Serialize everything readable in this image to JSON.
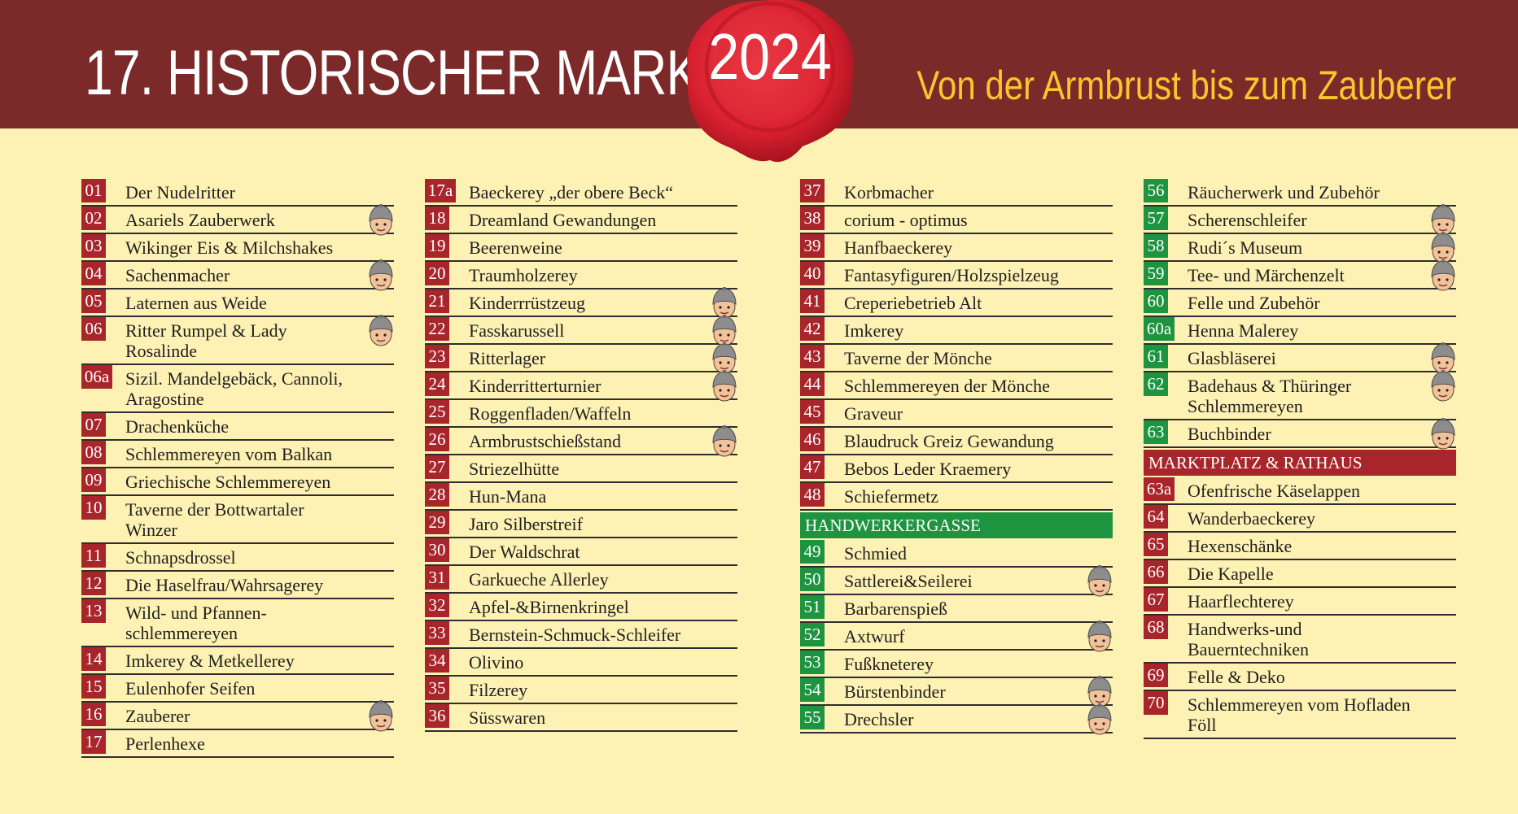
{
  "header": {
    "title": "17. HISTORISCHER MARKT",
    "year": "2024",
    "subtitle": "Von der Armbrust bis zum Zauberer"
  },
  "colors": {
    "banner": "#7c2a29",
    "background": "#fdf1b4",
    "number_red": "#a8262b",
    "number_green": "#1e9440",
    "subtitle": "#f7c72d"
  },
  "columns": [
    {
      "items": [
        {
          "num": "01",
          "name": "Der Nudelritter",
          "color": "red",
          "knight": false
        },
        {
          "num": "02",
          "name": "Asariels Zauberwerk",
          "color": "red",
          "knight": true
        },
        {
          "num": "03",
          "name": "Wikinger Eis & Milchshakes",
          "color": "red",
          "knight": false
        },
        {
          "num": "04",
          "name": "Sachenmacher",
          "color": "red",
          "knight": true
        },
        {
          "num": "05",
          "name": "Laternen aus Weide",
          "color": "red",
          "knight": false
        },
        {
          "num": "06",
          "name": "Ritter Rumpel & Lady Rosalinde",
          "color": "red",
          "knight": true
        },
        {
          "num": "06a",
          "name": "Sizil. Mandelgebäck, Cannoli,\nAragostine",
          "color": "red",
          "knight": false
        },
        {
          "num": "07",
          "name": "Drachenküche",
          "color": "red",
          "knight": false
        },
        {
          "num": "08",
          "name": "Schlemmereyen vom Balkan",
          "color": "red",
          "knight": false
        },
        {
          "num": "09",
          "name": "Griechische Schlemmereyen",
          "color": "red",
          "knight": false
        },
        {
          "num": "10",
          "name": "Taverne der Bottwartaler Winzer",
          "color": "red",
          "knight": false
        },
        {
          "num": "11",
          "name": "Schnapsdrossel",
          "color": "red",
          "knight": false
        },
        {
          "num": "12",
          "name": "Die Haselfrau/Wahrsagerey",
          "color": "red",
          "knight": false
        },
        {
          "num": "13",
          "name": "Wild- und Pfannen-\nschlemmereyen",
          "color": "red",
          "knight": false
        },
        {
          "num": "14",
          "name": "Imkerey & Metkellerey",
          "color": "red",
          "knight": false
        },
        {
          "num": "15",
          "name": "Eulenhofer Seifen",
          "color": "red",
          "knight": false
        },
        {
          "num": "16",
          "name": "Zauberer",
          "color": "red",
          "knight": true
        },
        {
          "num": "17",
          "name": "Perlenhexe",
          "color": "red",
          "knight": false
        }
      ]
    },
    {
      "items": [
        {
          "num": "17a",
          "name": "Baeckerey „der obere Beck“",
          "color": "red",
          "knight": false
        },
        {
          "num": "18",
          "name": "Dreamland Gewandungen",
          "color": "red",
          "knight": false
        },
        {
          "num": "19",
          "name": "Beerenweine",
          "color": "red",
          "knight": false
        },
        {
          "num": "20",
          "name": "Traumholzerey",
          "color": "red",
          "knight": false
        },
        {
          "num": "21",
          "name": "Kinderrrüstzeug",
          "color": "red",
          "knight": true
        },
        {
          "num": "22",
          "name": "Fasskarussell",
          "color": "red",
          "knight": true
        },
        {
          "num": "23",
          "name": "Ritterlager",
          "color": "red",
          "knight": true
        },
        {
          "num": "24",
          "name": "Kinderritterturnier",
          "color": "red",
          "knight": true
        },
        {
          "num": "25",
          "name": "Roggenfladen/Waffeln",
          "color": "red",
          "knight": false
        },
        {
          "num": "26",
          "name": "Armbrustschießstand",
          "color": "red",
          "knight": true
        },
        {
          "num": "27",
          "name": "Striezelhütte",
          "color": "red",
          "knight": false
        },
        {
          "num": "28",
          "name": "Hun-Mana",
          "color": "red",
          "knight": false
        },
        {
          "num": "29",
          "name": "Jaro Silberstreif",
          "color": "red",
          "knight": false
        },
        {
          "num": "30",
          "name": "Der Waldschrat",
          "color": "red",
          "knight": false
        },
        {
          "num": "31",
          "name": "Garkueche Allerley",
          "color": "red",
          "knight": false
        },
        {
          "num": "32",
          "name": "Apfel-&Birnenkringel",
          "color": "red",
          "knight": false
        },
        {
          "num": "33",
          "name": "Bernstein-Schmuck-Schleifer",
          "color": "red",
          "knight": false
        },
        {
          "num": "34",
          "name": "Olivino",
          "color": "red",
          "knight": false
        },
        {
          "num": "35",
          "name": "Filzerey",
          "color": "red",
          "knight": false
        },
        {
          "num": "36",
          "name": "Süsswaren",
          "color": "red",
          "knight": false
        }
      ]
    },
    {
      "items": [
        {
          "num": "37",
          "name": "Korbmacher",
          "color": "red",
          "knight": false
        },
        {
          "num": "38",
          "name": "corium - optimus",
          "color": "red",
          "knight": false
        },
        {
          "num": "39",
          "name": "Hanfbaeckerey",
          "color": "red",
          "knight": false
        },
        {
          "num": "40",
          "name": "Fantasyfiguren/Holzspielzeug",
          "color": "red",
          "knight": false
        },
        {
          "num": "41",
          "name": "Creperiebetrieb Alt",
          "color": "red",
          "knight": false
        },
        {
          "num": "42",
          "name": "Imkerey",
          "color": "red",
          "knight": false
        },
        {
          "num": "43",
          "name": "Taverne der Mönche",
          "color": "red",
          "knight": false
        },
        {
          "num": "44",
          "name": "Schlemmereyen der Mönche",
          "color": "red",
          "knight": false
        },
        {
          "num": "45",
          "name": "Graveur",
          "color": "red",
          "knight": false
        },
        {
          "num": "46",
          "name": "Blaudruck Greiz Gewandung",
          "color": "red",
          "knight": false
        },
        {
          "num": "47",
          "name": "Bebos Leder Kraemery",
          "color": "red",
          "knight": false
        },
        {
          "num": "48",
          "name": "Schiefermetz",
          "color": "red",
          "knight": false
        },
        {
          "section": "HANDWERKERGASSE",
          "color": "green"
        },
        {
          "num": "49",
          "name": "Schmied",
          "color": "green",
          "knight": false
        },
        {
          "num": "50",
          "name": "Sattlerei&Seilerei",
          "color": "green",
          "knight": true
        },
        {
          "num": "51",
          "name": "Barbarenspieß",
          "color": "green",
          "knight": false
        },
        {
          "num": "52",
          "name": "Axtwurf",
          "color": "green",
          "knight": true
        },
        {
          "num": "53",
          "name": "Fußkneterey",
          "color": "green",
          "knight": false
        },
        {
          "num": "54",
          "name": "Bürstenbinder",
          "color": "green",
          "knight": true
        },
        {
          "num": "55",
          "name": "Drechsler",
          "color": "green",
          "knight": true
        }
      ]
    },
    {
      "items": [
        {
          "num": "56",
          "name": "Räucherwerk und Zubehör",
          "color": "green",
          "knight": false
        },
        {
          "num": "57",
          "name": "Scherenschleifer",
          "color": "green",
          "knight": true
        },
        {
          "num": "58",
          "name": "Rudi´s Museum",
          "color": "green",
          "knight": true
        },
        {
          "num": "59",
          "name": "Tee- und Märchenzelt",
          "color": "green",
          "knight": true
        },
        {
          "num": "60",
          "name": "Felle und Zubehör",
          "color": "green",
          "knight": false
        },
        {
          "num": "60a",
          "name": "Henna Malerey",
          "color": "green",
          "knight": false
        },
        {
          "num": "61",
          "name": "Glasbläserei",
          "color": "green",
          "knight": true
        },
        {
          "num": "62",
          "name": "Badehaus & Thüringer\nSchlemmereyen",
          "color": "green",
          "knight": true
        },
        {
          "num": "63",
          "name": "Buchbinder",
          "color": "green",
          "knight": true
        },
        {
          "section": "MARKTPLATZ & RATHAUS",
          "color": "red"
        },
        {
          "num": "63a",
          "name": "Ofenfrische Käselappen",
          "color": "red",
          "knight": false
        },
        {
          "num": "64",
          "name": "Wanderbaeckerey",
          "color": "red",
          "knight": false
        },
        {
          "num": "65",
          "name": "Hexenschänke",
          "color": "red",
          "knight": false
        },
        {
          "num": "66",
          "name": "Die Kapelle",
          "color": "red",
          "knight": false
        },
        {
          "num": "67",
          "name": "Haarflechterey",
          "color": "red",
          "knight": false
        },
        {
          "num": "68",
          "name": "Handwerks-und Bauerntechniken",
          "color": "red",
          "knight": false
        },
        {
          "num": "69",
          "name": "Felle & Deko",
          "color": "red",
          "knight": false
        },
        {
          "num": "70",
          "name": "Schlemmereyen vom Hofladen\nFöll",
          "color": "red",
          "knight": false
        }
      ]
    }
  ]
}
